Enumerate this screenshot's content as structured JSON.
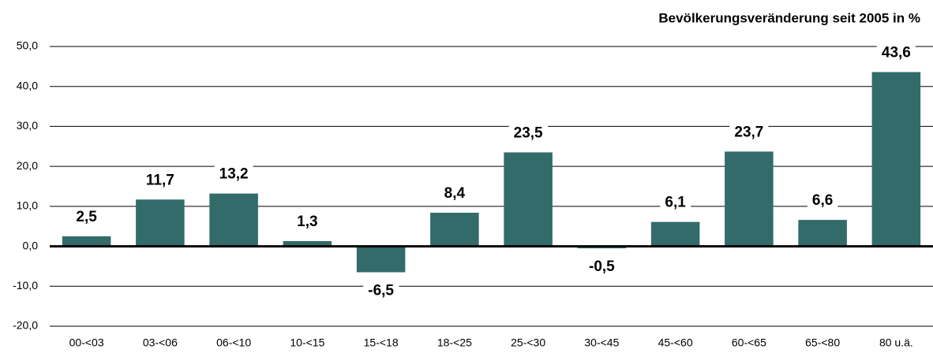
{
  "chart_data": {
    "type": "bar",
    "title": "Bevölkerungsveränderung seit 2005 in %",
    "categories": [
      "00-<03",
      "03-<06",
      "06-<10",
      "10-<15",
      "15-<18",
      "18-<25",
      "25-<30",
      "30-<45",
      "45-<60",
      "60-<65",
      "65-<80",
      "80 u.ä."
    ],
    "values": [
      2.5,
      11.7,
      13.2,
      1.3,
      -6.5,
      8.4,
      23.5,
      -0.5,
      6.1,
      23.7,
      6.6,
      43.6
    ],
    "value_labels": [
      "2,5",
      "11,7",
      "13,2",
      "1,3",
      "-6,5",
      "8,4",
      "23,5",
      "-0,5",
      "6,1",
      "23,7",
      "6,6",
      "43,6"
    ],
    "color": "#336b6b",
    "ylim": [
      -20,
      50
    ],
    "yticks": [
      {
        "value": -20,
        "label": "-20,0"
      },
      {
        "value": -10,
        "label": "-10,0"
      },
      {
        "value": 0,
        "label": "0,0"
      },
      {
        "value": 10,
        "label": "10,0"
      },
      {
        "value": 20,
        "label": "20,0"
      },
      {
        "value": 30,
        "label": "30,0"
      },
      {
        "value": 40,
        "label": "40,0"
      },
      {
        "value": 50,
        "label": "50,0"
      }
    ],
    "grid": true
  }
}
